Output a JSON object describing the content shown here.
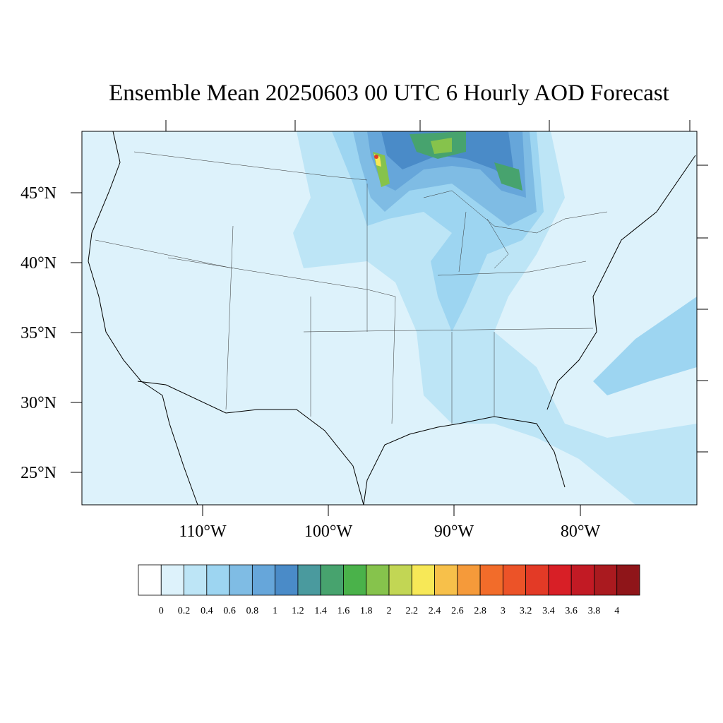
{
  "title": "Ensemble Mean 20250603 00 UTC 6 Hourly AOD Forecast",
  "lat_labels": [
    "45°N",
    "40°N",
    "35°N",
    "30°N",
    "25°N"
  ],
  "lon_labels": [
    "110°W",
    "100°W",
    "90°W",
    "80°W"
  ],
  "colorbar": {
    "labels": [
      "0",
      "0.2",
      "0.4",
      "0.6",
      "0.8",
      "1",
      "1.2",
      "1.4",
      "1.6",
      "1.8",
      "2",
      "2.2",
      "2.4",
      "2.6",
      "2.8",
      "3",
      "3.2",
      "3.4",
      "3.6",
      "3.8",
      "4"
    ],
    "colors": [
      "#ffffff",
      "#ddf2fb",
      "#bde5f6",
      "#9dd5f1",
      "#7fbce4",
      "#66a6da",
      "#4a8bc8",
      "#4a9a9e",
      "#47a36e",
      "#4ab24a",
      "#86c34c",
      "#c2d654",
      "#f7e857",
      "#f7c04a",
      "#f59a3a",
      "#f26c2a",
      "#ec5328",
      "#e33a26",
      "#d81f26",
      "#c21a24",
      "#aa1a1f",
      "#8f1519"
    ]
  }
}
